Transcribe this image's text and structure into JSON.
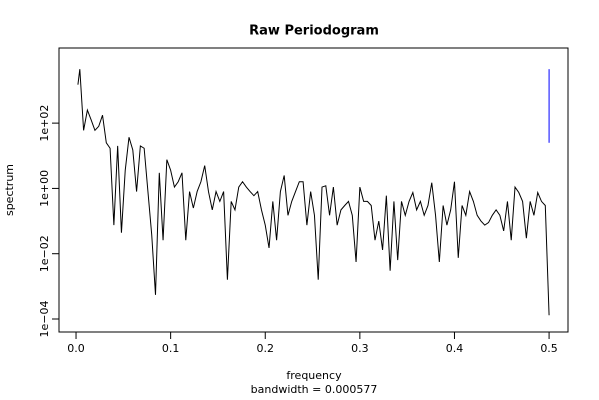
{
  "chart_data": {
    "type": "line",
    "title": "Raw Periodogram",
    "xlabel": "frequency",
    "subtitle": "bandwidth = 0.000577",
    "ylabel": "spectrum",
    "log_y": true,
    "color": "#000000",
    "x": [
      0.002,
      0.004,
      0.008,
      0.012,
      0.016,
      0.02,
      0.024,
      0.028,
      0.032,
      0.036,
      0.04,
      0.044,
      0.048,
      0.052,
      0.056,
      0.06,
      0.064,
      0.068,
      0.072,
      0.076,
      0.08,
      0.084,
      0.088,
      0.092,
      0.096,
      0.1,
      0.104,
      0.108,
      0.112,
      0.116,
      0.12,
      0.124,
      0.128,
      0.132,
      0.136,
      0.14,
      0.144,
      0.148,
      0.152,
      0.156,
      0.16,
      0.164,
      0.168,
      0.172,
      0.176,
      0.18,
      0.184,
      0.188,
      0.192,
      0.196,
      0.2,
      0.204,
      0.208,
      0.212,
      0.216,
      0.22,
      0.224,
      0.228,
      0.232,
      0.236,
      0.24,
      0.244,
      0.248,
      0.252,
      0.256,
      0.26,
      0.264,
      0.268,
      0.272,
      0.276,
      0.28,
      0.284,
      0.288,
      0.292,
      0.296,
      0.3,
      0.304,
      0.308,
      0.312,
      0.316,
      0.32,
      0.324,
      0.328,
      0.332,
      0.336,
      0.34,
      0.344,
      0.348,
      0.352,
      0.356,
      0.36,
      0.364,
      0.368,
      0.372,
      0.376,
      0.38,
      0.384,
      0.388,
      0.392,
      0.396,
      0.4,
      0.404,
      0.408,
      0.412,
      0.416,
      0.42,
      0.424,
      0.428,
      0.432,
      0.436,
      0.44,
      0.444,
      0.448,
      0.452,
      0.456,
      0.46,
      0.464,
      0.468,
      0.472,
      0.476,
      0.48,
      0.484,
      0.488,
      0.492,
      0.496,
      0.5
    ],
    "values": [
      1500,
      4500,
      60,
      250,
      125,
      60,
      80,
      175,
      25,
      17,
      0.075,
      20,
      0.044,
      3.6,
      37,
      15,
      0.8,
      20,
      17,
      0.8,
      0.038,
      0.00055,
      3,
      0.026,
      7.6,
      3.6,
      1.1,
      1.6,
      3,
      0.026,
      0.8,
      0.25,
      0.8,
      1.6,
      5,
      0.8,
      0.22,
      0.8,
      0.4,
      0.8,
      0.0016,
      0.4,
      0.22,
      1.1,
      1.6,
      1.1,
      0.8,
      0.6,
      0.8,
      0.22,
      0.075,
      0.015,
      0.4,
      0.026,
      0.8,
      2.5,
      0.15,
      0.4,
      0.8,
      1.6,
      1.6,
      0.075,
      0.8,
      0.15,
      0.0016,
      1.1,
      1.2,
      0.15,
      1.1,
      0.075,
      0.22,
      0.3,
      0.4,
      0.15,
      0.0056,
      1.1,
      0.4,
      0.4,
      0.3,
      0.026,
      0.1,
      0.013,
      0.6,
      0.003,
      0.4,
      0.0064,
      0.4,
      0.15,
      0.4,
      0.75,
      0.22,
      0.4,
      0.15,
      0.3,
      1.5,
      0.15,
      0.0056,
      0.3,
      0.075,
      0.22,
      1.6,
      0.0075,
      0.3,
      0.15,
      0.8,
      0.4,
      0.15,
      0.1,
      0.075,
      0.09,
      0.15,
      0.22,
      0.15,
      0.05,
      0.4,
      0.026,
      1.1,
      0.75,
      0.4,
      0.03,
      0.4,
      0.15,
      0.75,
      0.4,
      0.3,
      0.00013
    ],
    "ci_bar": {
      "x": 0.5,
      "lower": 25,
      "upper": 4500,
      "color": "#0000ff"
    },
    "xlim": [
      -0.018,
      0.52
    ],
    "ylim": [
      4e-05,
      20000
    ],
    "xticks": [
      {
        "value": 0,
        "label": "0.0"
      },
      0.1,
      0.2,
      0.3,
      0.4,
      0.5
    ],
    "yticks": [
      {
        "value": 0.0001,
        "label": "1e−04"
      },
      {
        "value": 0.01,
        "label": "1e−02"
      },
      {
        "value": 1,
        "label": "1e+00"
      },
      {
        "value": 100,
        "label": "1e+02"
      }
    ]
  }
}
